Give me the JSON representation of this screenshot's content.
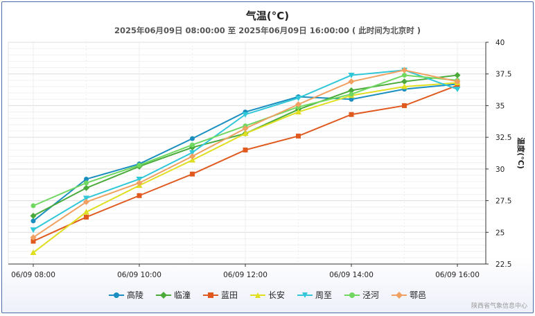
{
  "chart_data": {
    "type": "line",
    "title": "气温(°C)",
    "subtitle": "2025年06月09日 08:00:00 至 2025年06月09日 16:00:00 ( 此时间为北京时 )",
    "ylabel": "温度(°C)",
    "xlabel": "",
    "ylim": [
      22.5,
      40
    ],
    "yticks": [
      "22.5",
      "25",
      "27.5",
      "30",
      "32.5",
      "35",
      "37.5",
      "40"
    ],
    "y_axis_side": "right",
    "x": [
      "08:00",
      "09:00",
      "10:00",
      "11:00",
      "12:00",
      "13:00",
      "14:00",
      "15:00",
      "16:00"
    ],
    "xtick_labels": [
      "06/09 08:00",
      "06/09 10:00",
      "06/09 12:00",
      "06/09 14:00",
      "06/09 16:00"
    ],
    "grid": true,
    "legend_position": "bottom",
    "series": [
      {
        "name": "高陵",
        "color": "#1a8fbf",
        "marker": "circle",
        "values": [
          25.9,
          29.2,
          30.4,
          32.4,
          34.5,
          35.7,
          35.5,
          36.3,
          36.7
        ]
      },
      {
        "name": "临潼",
        "color": "#4aaa3a",
        "marker": "diamond",
        "values": [
          26.3,
          28.5,
          30.2,
          31.7,
          32.8,
          34.7,
          36.2,
          36.9,
          37.4
        ]
      },
      {
        "name": "蓝田",
        "color": "#e05a20",
        "marker": "square",
        "values": [
          24.3,
          26.2,
          27.9,
          29.6,
          31.5,
          32.6,
          34.3,
          35.0,
          36.6
        ]
      },
      {
        "name": "长安",
        "color": "#e0de20",
        "marker": "triangle-up",
        "values": [
          23.4,
          26.6,
          28.7,
          30.7,
          32.8,
          34.5,
          35.8,
          36.5,
          36.8
        ]
      },
      {
        "name": "周至",
        "color": "#30c8d8",
        "marker": "triangle-down",
        "values": [
          25.2,
          27.7,
          29.2,
          31.3,
          34.3,
          35.6,
          37.4,
          37.8,
          36.3
        ]
      },
      {
        "name": "泾河",
        "color": "#70d860",
        "marker": "circle",
        "values": [
          27.1,
          28.9,
          30.3,
          31.9,
          33.4,
          34.9,
          35.9,
          37.4,
          37.0
        ]
      },
      {
        "name": "鄠邑",
        "color": "#f0a060",
        "marker": "diamond",
        "values": [
          24.6,
          27.4,
          28.9,
          31.0,
          33.2,
          35.1,
          36.9,
          37.8,
          36.9
        ]
      }
    ]
  },
  "credit": "陕西省气象信息中心"
}
